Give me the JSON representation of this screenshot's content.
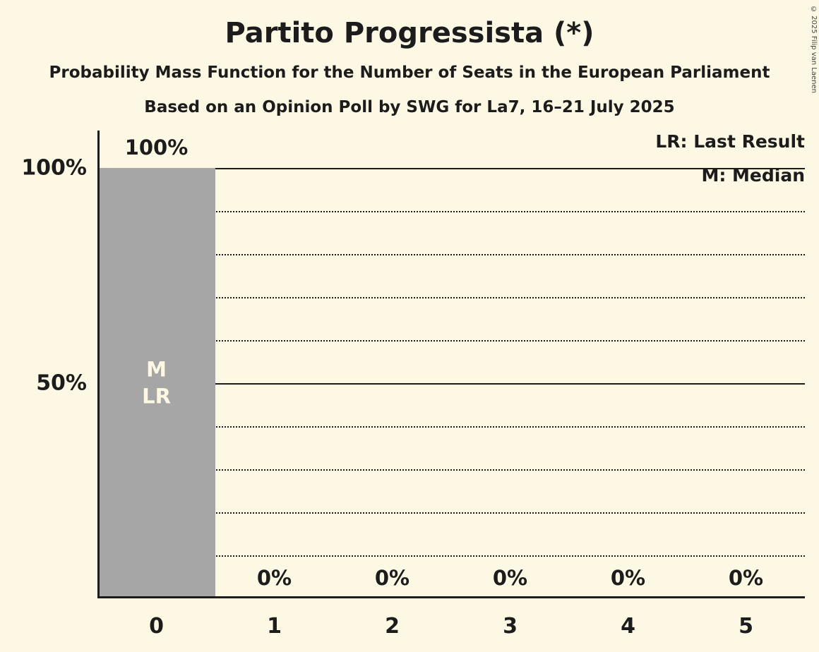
{
  "header": {
    "title": "Partito Progressista (*)",
    "subtitle": "Probability Mass Function for the Number of Seats in the European Parliament",
    "source_line": "Based on an Opinion Poll by SWG for La7, 16–21 July 2025"
  },
  "copyright": "© 2025 Filip van Laenen",
  "colors": {
    "background": "#FCF8E3",
    "text": "#1C1C1C",
    "bar": "#A6A6A6",
    "bar_label": "#FCF8E3"
  },
  "chart_data": {
    "type": "bar",
    "title": "Partito Progressista (*)",
    "subtitle": "Probability Mass Function for the Number of Seats in the European Parliament",
    "source": "Based on an Opinion Poll by SWG for La7, 16–21 July 2025",
    "categories": [
      "0",
      "1",
      "2",
      "3",
      "4",
      "5"
    ],
    "values": [
      100,
      0,
      0,
      0,
      0,
      0
    ],
    "value_labels": [
      "100%",
      "0%",
      "0%",
      "0%",
      "0%",
      "0%"
    ],
    "xlabel": "",
    "ylabel": "",
    "ylim": [
      0,
      100
    ],
    "yticks": [
      {
        "value": 100,
        "label": "100%"
      },
      {
        "value": 50,
        "label": "50%"
      }
    ],
    "solid_lines": [
      100,
      50
    ],
    "dotted_lines": [
      90,
      80,
      70,
      60,
      40,
      30,
      20,
      10
    ],
    "grid": "horizontal-dotted",
    "legend_position": "top-right",
    "legend": {
      "lr": "LR: Last Result",
      "m": "M: Median"
    },
    "annotations": [
      {
        "bar": 0,
        "lines": [
          "M",
          "LR"
        ],
        "meaning": "Median and Last Result at 0 seats"
      }
    ]
  }
}
